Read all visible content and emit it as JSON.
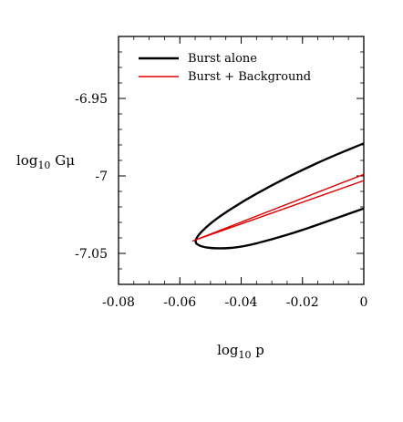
{
  "chart_data": {
    "type": "line",
    "xlabel": "log",
    "xlabel_sub": "10",
    "xlabel_var": " p",
    "ylabel": "log",
    "ylabel_sub": "10",
    "ylabel_var": " Gμ",
    "xlim": [
      -0.08,
      0
    ],
    "ylim": [
      -7.07,
      -6.91
    ],
    "x_ticks": [
      -0.08,
      -0.06,
      -0.04,
      -0.02,
      0
    ],
    "x_tick_labels": [
      "-0.08",
      "-0.06",
      "-0.04",
      "-0.02",
      "0"
    ],
    "y_ticks": [
      -6.95,
      -7.0,
      -7.05
    ],
    "y_tick_labels": [
      "-6.95",
      "-7",
      "-7.05"
    ],
    "grid": false,
    "legend_position": "top-left",
    "series": [
      {
        "name": "Burst alone",
        "color": "#000000",
        "x": [
          0,
          -0.01,
          -0.02,
          -0.03,
          -0.04,
          -0.05,
          -0.0558,
          -0.053,
          -0.047,
          -0.04,
          -0.03,
          -0.02,
          -0.01,
          0
        ],
        "y": [
          -6.979,
          -6.987,
          -6.996,
          -7.006,
          -7.017,
          -7.03,
          -7.042,
          -7.046,
          -7.047,
          -7.046,
          -7.041,
          -7.035,
          -7.028,
          -7.021
        ]
      },
      {
        "name": "Burst + Background",
        "color": "#e00000",
        "x": [
          0,
          -0.0558,
          0
        ],
        "y": [
          -6.999,
          -7.042,
          -7.003
        ]
      }
    ]
  }
}
